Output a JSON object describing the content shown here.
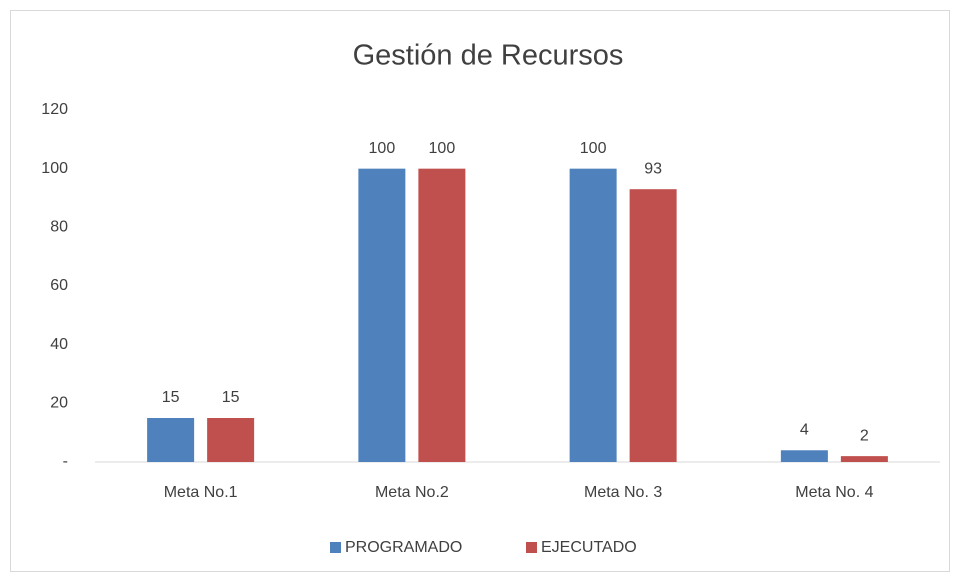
{
  "chart_data": {
    "type": "bar",
    "title": "Gestión de Recursos",
    "categories": [
      "Meta No.1",
      "Meta No.2",
      "Meta No. 3",
      "Meta No. 4"
    ],
    "series": [
      {
        "name": "PROGRAMADO",
        "color": "#4f81bd",
        "values": [
          15,
          100,
          100,
          4
        ]
      },
      {
        "name": "EJECUTADO",
        "color": "#c0504d",
        "values": [
          15,
          100,
          93,
          2
        ]
      }
    ],
    "ylim": [
      0,
      120
    ],
    "yticks": [
      {
        "value": 0,
        "label": "-"
      },
      20,
      40,
      60,
      80,
      100,
      120
    ],
    "grid": false,
    "legend": "bottom"
  }
}
